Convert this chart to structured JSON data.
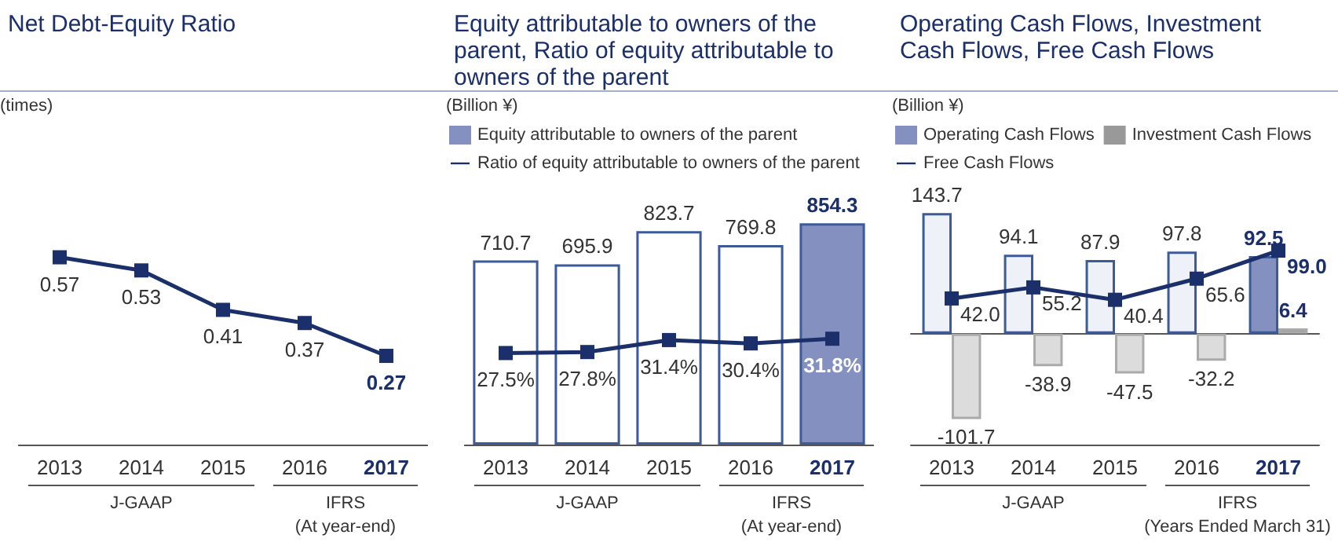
{
  "chart_data": [
    {
      "type": "line",
      "title": "Net Debt-Equity Ratio",
      "ylabel": "(times)",
      "categories": [
        "2013",
        "2014",
        "2015",
        "2016",
        "2017"
      ],
      "marker": "square",
      "legend": false,
      "series": [
        {
          "color": "#1b2f6b",
          "values": [
            0.57,
            0.53,
            0.41,
            0.37,
            0.27
          ],
          "value_labels": [
            "0.57",
            "0.53",
            "0.41",
            "0.37",
            "0.27"
          ]
        }
      ],
      "annotations": [
        "J-GAAP",
        "IFRS\n(At year-end)"
      ]
    },
    {
      "type": "bar",
      "title": "Equity attributable to owners of the parent, Ratio of equity attributable to owners of the parent",
      "ylabel": "(Billion ¥)",
      "categories": [
        "2013",
        "2014",
        "2015",
        "2016",
        "2017"
      ],
      "marker": "square",
      "legend": "top left",
      "series": [
        {
          "name": "Equity attributable to owners of the parent",
          "type": "bar",
          "color": "#8491c0",
          "colors": [
            "#ffffff",
            "#ffffff",
            "#ffffff",
            "#ffffff",
            "#8491c0"
          ],
          "values": [
            710.7,
            695.9,
            823.7,
            769.8,
            854.3
          ],
          "value_labels": [
            "710.7",
            "695.9",
            "823.7",
            "769.8",
            "854.3"
          ]
        },
        {
          "name": "Ratio of equity attributable to owners of the parent",
          "type": "line",
          "axis": "y2",
          "color": "#1b2f6b",
          "values": [
            27.5,
            27.8,
            31.4,
            30.4,
            31.8
          ],
          "value_labels": [
            "27.5%",
            "27.8%",
            "31.4%",
            "30.4%",
            "31.8%"
          ]
        }
      ],
      "annotations": [
        "J-GAAP",
        "IFRS\n(At year-end)"
      ]
    },
    {
      "type": "bar",
      "title": "Operating Cash Flows, Investment Cash Flows, Free Cash Flows",
      "ylabel": "(Billion ¥)",
      "categories": [
        "2013",
        "2014",
        "2015",
        "2016",
        "2017"
      ],
      "marker": "square",
      "legend": "top left",
      "series": [
        {
          "name": "Operating Cash Flows",
          "type": "bar",
          "color": "#8491c0",
          "colors": [
            "#eef1f8",
            "#eef1f8",
            "#eef1f8",
            "#eef1f8",
            "#8491c0"
          ],
          "values": [
            143.7,
            94.1,
            87.9,
            97.8,
            92.5
          ],
          "value_labels": [
            "143.7",
            "94.1",
            "87.9",
            "97.8",
            "92.5"
          ]
        },
        {
          "name": "Investment Cash Flows",
          "type": "bar",
          "color": "#999999",
          "colors": [
            "#dcdcdc",
            "#dcdcdc",
            "#dcdcdc",
            "#dcdcdc",
            "#999999"
          ],
          "values": [
            -101.7,
            -38.9,
            -47.5,
            -32.2,
            6.4
          ],
          "value_labels": [
            "-101.7",
            "-38.9",
            "-47.5",
            "-32.2",
            "6.4"
          ]
        },
        {
          "name": "Free Cash Flows",
          "type": "line",
          "color": "#1b2f6b",
          "values": [
            42.0,
            55.2,
            40.4,
            65.6,
            99.0
          ],
          "value_labels": [
            "42.0",
            "55.2",
            "40.4",
            "65.6",
            "99.0"
          ]
        }
      ],
      "annotations": [
        "J-GAAP",
        "IFRS\n(Years Ended March 31)"
      ]
    }
  ]
}
